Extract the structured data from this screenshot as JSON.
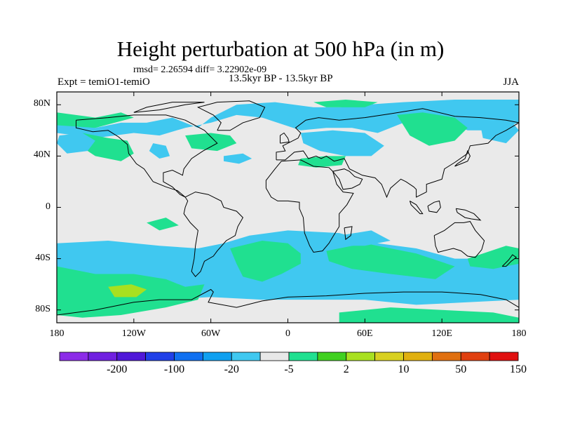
{
  "title": "Height perturbation at 500 hPa (in m)",
  "stats": "rmsd= 2.26594 diff= 3.22902e-09",
  "expt": "Expt = temiO1-temiO",
  "period": "13.5kyr BP - 13.5kyr BP",
  "season": "JJA",
  "map": {
    "lat_range": [
      -90,
      90
    ],
    "lon_range": [
      -180,
      180
    ],
    "y_ticks": [
      {
        "lat": 80,
        "label": "80N"
      },
      {
        "lat": 40,
        "label": "40N"
      },
      {
        "lat": 0,
        "label": "0"
      },
      {
        "lat": -40,
        "label": "40S"
      },
      {
        "lat": -80,
        "label": "80S"
      }
    ],
    "x_ticks": [
      {
        "lon": -180,
        "label": "180"
      },
      {
        "lon": -120,
        "label": "120W"
      },
      {
        "lon": -60,
        "label": "60W"
      },
      {
        "lon": 0,
        "label": "0"
      },
      {
        "lon": 60,
        "label": "60E"
      },
      {
        "lon": 120,
        "label": "120E"
      },
      {
        "lon": 180,
        "label": "180"
      }
    ],
    "background_color": "#eaeaea",
    "regions": [
      {
        "name": "nh-blue-band",
        "color": "#40c8f0",
        "points": [
          [
            -180,
            68
          ],
          [
            -150,
            62
          ],
          [
            -130,
            66
          ],
          [
            -110,
            66
          ],
          [
            -90,
            70
          ],
          [
            -70,
            62
          ],
          [
            -60,
            70
          ],
          [
            -40,
            80
          ],
          [
            -10,
            82
          ],
          [
            20,
            78
          ],
          [
            40,
            78
          ],
          [
            60,
            80
          ],
          [
            90,
            82
          ],
          [
            130,
            84
          ],
          [
            180,
            84
          ],
          [
            180,
            66
          ],
          [
            160,
            60
          ],
          [
            140,
            60
          ],
          [
            120,
            68
          ],
          [
            100,
            70
          ],
          [
            80,
            62
          ],
          [
            70,
            58
          ],
          [
            50,
            62
          ],
          [
            30,
            62
          ],
          [
            10,
            60
          ],
          [
            -20,
            70
          ],
          [
            -40,
            72
          ],
          [
            -60,
            66
          ],
          [
            -80,
            62
          ],
          [
            -100,
            56
          ],
          [
            -120,
            58
          ],
          [
            -150,
            54
          ],
          [
            -180,
            58
          ]
        ]
      },
      {
        "name": "nh-green-pacific",
        "color": "#20e090",
        "points": [
          [
            -180,
            74
          ],
          [
            -150,
            70
          ],
          [
            -130,
            74
          ],
          [
            -120,
            70
          ],
          [
            -150,
            62
          ],
          [
            -180,
            64
          ]
        ]
      },
      {
        "name": "nh-green-west-pacific",
        "color": "#20e090",
        "points": [
          [
            -160,
            58
          ],
          [
            -140,
            54
          ],
          [
            -125,
            52
          ],
          [
            -120,
            42
          ],
          [
            -130,
            36
          ],
          [
            -150,
            40
          ],
          [
            -165,
            50
          ]
        ]
      },
      {
        "name": "nh-blue-pacific-cell",
        "color": "#40c8f0",
        "points": [
          [
            -178,
            56
          ],
          [
            -160,
            58
          ],
          [
            -150,
            52
          ],
          [
            -156,
            44
          ],
          [
            -172,
            42
          ],
          [
            -180,
            50
          ]
        ]
      },
      {
        "name": "nh-green-atlantic",
        "color": "#20e090",
        "points": [
          [
            -80,
            56
          ],
          [
            -60,
            58
          ],
          [
            -45,
            56
          ],
          [
            -40,
            50
          ],
          [
            -55,
            44
          ],
          [
            -75,
            46
          ]
        ]
      },
      {
        "name": "nh-blue-na",
        "color": "#40c8f0",
        "points": [
          [
            -105,
            50
          ],
          [
            -95,
            48
          ],
          [
            -92,
            40
          ],
          [
            -100,
            38
          ],
          [
            -108,
            44
          ]
        ]
      },
      {
        "name": "nh-blue-atl",
        "color": "#40c8f0",
        "points": [
          [
            -50,
            40
          ],
          [
            -35,
            42
          ],
          [
            -28,
            38
          ],
          [
            -38,
            34
          ],
          [
            -50,
            36
          ]
        ]
      },
      {
        "name": "nh-blue-europe",
        "color": "#40c8f0",
        "points": [
          [
            10,
            58
          ],
          [
            35,
            60
          ],
          [
            60,
            58
          ],
          [
            75,
            48
          ],
          [
            65,
            40
          ],
          [
            45,
            40
          ],
          [
            25,
            44
          ],
          [
            12,
            50
          ]
        ]
      },
      {
        "name": "nh-green-med",
        "color": "#20e090",
        "points": [
          [
            10,
            38
          ],
          [
            30,
            40
          ],
          [
            45,
            40
          ],
          [
            42,
            33
          ],
          [
            22,
            31
          ],
          [
            8,
            33
          ]
        ]
      },
      {
        "name": "nh-green-siberia",
        "color": "#20e090",
        "points": [
          [
            85,
            72
          ],
          [
            105,
            74
          ],
          [
            130,
            70
          ],
          [
            140,
            62
          ],
          [
            130,
            52
          ],
          [
            110,
            48
          ],
          [
            95,
            56
          ]
        ]
      },
      {
        "name": "nh-green-arctic",
        "color": "#20e090",
        "points": [
          [
            20,
            82
          ],
          [
            45,
            84
          ],
          [
            70,
            82
          ],
          [
            60,
            78
          ],
          [
            30,
            78
          ]
        ]
      },
      {
        "name": "nh-blue-pacific-east",
        "color": "#40c8f0",
        "points": [
          [
            150,
            64
          ],
          [
            175,
            66
          ],
          [
            180,
            60
          ],
          [
            170,
            50
          ],
          [
            152,
            54
          ]
        ]
      },
      {
        "name": "sh-blue-band",
        "color": "#40c8f0",
        "points": [
          [
            -180,
            -28
          ],
          [
            -140,
            -26
          ],
          [
            -100,
            -30
          ],
          [
            -70,
            -32
          ],
          [
            -50,
            -28
          ],
          [
            -30,
            -22
          ],
          [
            0,
            -18
          ],
          [
            40,
            -20
          ],
          [
            70,
            -28
          ],
          [
            100,
            -32
          ],
          [
            130,
            -40
          ],
          [
            160,
            -40
          ],
          [
            180,
            -36
          ],
          [
            180,
            -72
          ],
          [
            140,
            -74
          ],
          [
            100,
            -76
          ],
          [
            60,
            -72
          ],
          [
            20,
            -72
          ],
          [
            -20,
            -72
          ],
          [
            -60,
            -70
          ],
          [
            -100,
            -72
          ],
          [
            -140,
            -76
          ],
          [
            -180,
            -70
          ]
        ]
      },
      {
        "name": "sh-green-pacific",
        "color": "#20e090",
        "points": [
          [
            -180,
            -46
          ],
          [
            -150,
            -52
          ],
          [
            -120,
            -52
          ],
          [
            -95,
            -56
          ],
          [
            -80,
            -62
          ],
          [
            -65,
            -60
          ],
          [
            -70,
            -72
          ],
          [
            -95,
            -78
          ],
          [
            -130,
            -84
          ],
          [
            -160,
            -86
          ],
          [
            -180,
            -84
          ]
        ]
      },
      {
        "name": "sh-yellowgreen-core",
        "color": "#a8e020",
        "points": [
          [
            -140,
            -62
          ],
          [
            -122,
            -60
          ],
          [
            -110,
            -64
          ],
          [
            -118,
            -70
          ],
          [
            -135,
            -70
          ]
        ]
      },
      {
        "name": "sh-green-atlantic",
        "color": "#20e090",
        "points": [
          [
            -45,
            -32
          ],
          [
            -20,
            -26
          ],
          [
            0,
            -28
          ],
          [
            10,
            -36
          ],
          [
            10,
            -44
          ],
          [
            -5,
            -52
          ],
          [
            -20,
            -58
          ],
          [
            -35,
            -54
          ],
          [
            -40,
            -44
          ]
        ]
      },
      {
        "name": "sh-green-indian",
        "color": "#20e090",
        "points": [
          [
            30,
            -34
          ],
          [
            60,
            -28
          ],
          [
            100,
            -36
          ],
          [
            130,
            -46
          ],
          [
            115,
            -56
          ],
          [
            80,
            -52
          ],
          [
            50,
            -48
          ],
          [
            32,
            -42
          ]
        ]
      },
      {
        "name": "sh-green-south-pacific",
        "color": "#20e090",
        "points": [
          [
            140,
            -40
          ],
          [
            170,
            -30
          ],
          [
            180,
            -32
          ],
          [
            180,
            -44
          ],
          [
            160,
            -48
          ],
          [
            142,
            -46
          ]
        ]
      },
      {
        "name": "sh-green-antarctic",
        "color": "#20e090",
        "points": [
          [
            40,
            -82
          ],
          [
            80,
            -78
          ],
          [
            120,
            -80
          ],
          [
            160,
            -82
          ],
          [
            180,
            -86
          ],
          [
            180,
            -90
          ],
          [
            40,
            -90
          ]
        ]
      },
      {
        "name": "equatorial-green-1",
        "color": "#20e090",
        "points": [
          [
            -110,
            -12
          ],
          [
            -95,
            -8
          ],
          [
            -85,
            -14
          ],
          [
            -100,
            -18
          ]
        ]
      },
      {
        "name": "equatorial-blue-indian",
        "color": "#40c8f0",
        "points": [
          [
            40,
            -22
          ],
          [
            65,
            -18
          ],
          [
            80,
            -26
          ],
          [
            60,
            -30
          ],
          [
            42,
            -30
          ]
        ]
      }
    ],
    "colorbar": {
      "colors": [
        "#8c2ce8",
        "#7020e0",
        "#5018d8",
        "#2040e8",
        "#1070f0",
        "#10a0f0",
        "#40c8f0",
        "#e8e8e8",
        "#20e090",
        "#40d020",
        "#a8e020",
        "#d8d020",
        "#e0b010",
        "#e07010",
        "#e04010",
        "#e01010"
      ],
      "labels": [
        {
          "after": 1,
          "label": "-200"
        },
        {
          "after": 3,
          "label": "-100"
        },
        {
          "after": 5,
          "label": "-20"
        },
        {
          "after": 7,
          "label": "-5"
        },
        {
          "after": 9,
          "label": "2"
        },
        {
          "after": 11,
          "label": "10"
        },
        {
          "after": 13,
          "label": "50"
        },
        {
          "after": 15,
          "label": "150"
        }
      ]
    }
  }
}
